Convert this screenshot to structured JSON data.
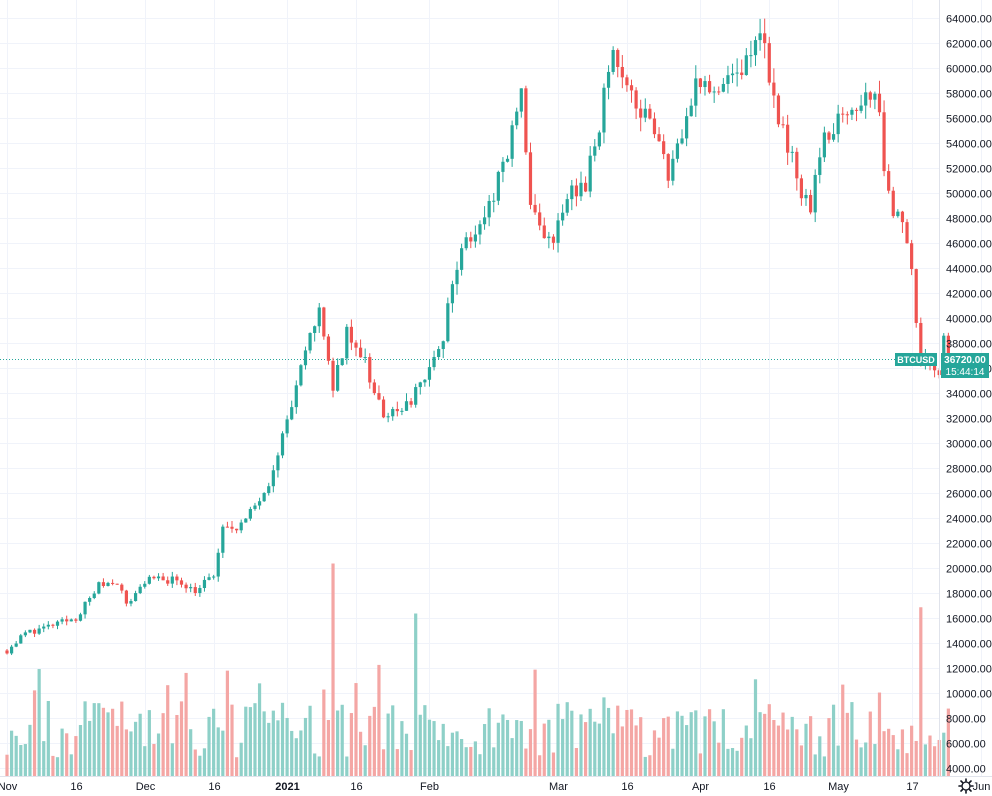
{
  "symbol": "BTCUSD",
  "last_price_label": "36720.00",
  "countdown": "15:44:14",
  "settings_icon": "gear-icon",
  "colors": {
    "up": "#26a69a",
    "down": "#ef5350",
    "up_vol": "#8ed0c8",
    "down_vol": "#f4a6a4",
    "grid": "#f0f3fa",
    "price_line": "#26a69a"
  },
  "chart_data": {
    "type": "candlestick",
    "title": "",
    "ylim": [
      3000,
      65500
    ],
    "y_ticks": [
      4000,
      6000,
      8000,
      10000,
      12000,
      14000,
      16000,
      18000,
      20000,
      22000,
      24000,
      26000,
      28000,
      30000,
      32000,
      34000,
      36000,
      38000,
      40000,
      42000,
      44000,
      46000,
      48000,
      50000,
      52000,
      54000,
      56000,
      58000,
      60000,
      62000,
      64000
    ],
    "y_tick_labels": [
      "4000.00",
      "6000.00",
      "8000.00",
      "10000.00",
      "12000.00",
      "14000.00",
      "16000.00",
      "18000.00",
      "20000.00",
      "22000.00",
      "24000.00",
      "26000.00",
      "28000.00",
      "30000.00",
      "32000.00",
      "34000.00",
      "36000.00",
      "38000.00",
      "40000.00",
      "42000.00",
      "44000.00",
      "46000.00",
      "48000.00",
      "50000.00",
      "52000.00",
      "54000.00",
      "56000.00",
      "58000.00",
      "60000.00",
      "62000.00",
      "64000.00"
    ],
    "x_ticks": [
      {
        "label": "Nov",
        "date": "2020-11-01",
        "bold": false
      },
      {
        "label": "16",
        "date": "2020-11-16",
        "bold": false
      },
      {
        "label": "Dec",
        "date": "2020-12-01",
        "bold": false
      },
      {
        "label": "16",
        "date": "2020-12-16",
        "bold": false
      },
      {
        "label": "2021",
        "date": "2021-01-01",
        "bold": true
      },
      {
        "label": "16",
        "date": "2021-01-16",
        "bold": false
      },
      {
        "label": "Feb",
        "date": "2021-02-01",
        "bold": false
      },
      {
        "label": "Mar",
        "date": "2021-03-01",
        "bold": false
      },
      {
        "label": "16",
        "date": "2021-03-16",
        "bold": false
      },
      {
        "label": "Apr",
        "date": "2021-04-01",
        "bold": false
      },
      {
        "label": "16",
        "date": "2021-04-16",
        "bold": false
      },
      {
        "label": "May",
        "date": "2021-05-01",
        "bold": false
      },
      {
        "label": "17",
        "date": "2021-05-17",
        "bold": false
      },
      {
        "label": "Jun",
        "date": "2021-06-01",
        "bold": false
      }
    ],
    "last_price": 36720,
    "price_series": [
      {
        "date": "2020-11-01",
        "close": 13400
      },
      {
        "date": "2020-11-05",
        "close": 14800
      },
      {
        "date": "2020-11-10",
        "close": 15300
      },
      {
        "date": "2020-11-16",
        "close": 16000
      },
      {
        "date": "2020-11-21",
        "close": 18600
      },
      {
        "date": "2020-11-25",
        "close": 19000
      },
      {
        "date": "2020-11-27",
        "close": 17000
      },
      {
        "date": "2020-12-01",
        "close": 19000
      },
      {
        "date": "2020-12-08",
        "close": 19100
      },
      {
        "date": "2020-12-12",
        "close": 18200
      },
      {
        "date": "2020-12-16",
        "close": 19400
      },
      {
        "date": "2020-12-18",
        "close": 23000
      },
      {
        "date": "2020-12-23",
        "close": 23700
      },
      {
        "date": "2020-12-28",
        "close": 27000
      },
      {
        "date": "2021-01-02",
        "close": 33000
      },
      {
        "date": "2021-01-08",
        "close": 41000
      },
      {
        "date": "2021-01-11",
        "close": 34000
      },
      {
        "date": "2021-01-14",
        "close": 39000
      },
      {
        "date": "2021-01-18",
        "close": 36500
      },
      {
        "date": "2021-01-22",
        "close": 32000
      },
      {
        "date": "2021-01-26",
        "close": 32400
      },
      {
        "date": "2021-01-29",
        "close": 34000
      },
      {
        "date": "2021-02-03",
        "close": 37000
      },
      {
        "date": "2021-02-08",
        "close": 46000
      },
      {
        "date": "2021-02-13",
        "close": 48000
      },
      {
        "date": "2021-02-17",
        "close": 52000
      },
      {
        "date": "2021-02-21",
        "close": 57500
      },
      {
        "date": "2021-02-23",
        "close": 48500
      },
      {
        "date": "2021-02-28",
        "close": 45500
      },
      {
        "date": "2021-03-03",
        "close": 50000
      },
      {
        "date": "2021-03-07",
        "close": 50500
      },
      {
        "date": "2021-03-13",
        "close": 61000
      },
      {
        "date": "2021-03-17",
        "close": 58000
      },
      {
        "date": "2021-03-22",
        "close": 55000
      },
      {
        "date": "2021-03-25",
        "close": 51500
      },
      {
        "date": "2021-03-31",
        "close": 59000
      },
      {
        "date": "2021-04-05",
        "close": 58500
      },
      {
        "date": "2021-04-10",
        "close": 59500
      },
      {
        "date": "2021-04-14",
        "close": 63500
      },
      {
        "date": "2021-04-18",
        "close": 56000
      },
      {
        "date": "2021-04-23",
        "close": 50000
      },
      {
        "date": "2021-04-25",
        "close": 49000
      },
      {
        "date": "2021-04-28",
        "close": 54500
      },
      {
        "date": "2021-05-03",
        "close": 57000
      },
      {
        "date": "2021-05-09",
        "close": 58500
      },
      {
        "date": "2021-05-12",
        "close": 49500
      },
      {
        "date": "2021-05-16",
        "close": 46500
      },
      {
        "date": "2021-05-19",
        "close": 37000
      },
      {
        "date": "2021-05-23",
        "close": 35000
      },
      {
        "date": "2021-05-24",
        "close": 38800
      },
      {
        "date": "2021-05-25",
        "close": 36720
      }
    ],
    "volume_spikes": [
      {
        "date": "2021-01-11",
        "volume": 20500
      },
      {
        "date": "2021-01-29",
        "volume": 16500
      },
      {
        "date": "2021-05-19",
        "volume": 17000
      }
    ]
  }
}
